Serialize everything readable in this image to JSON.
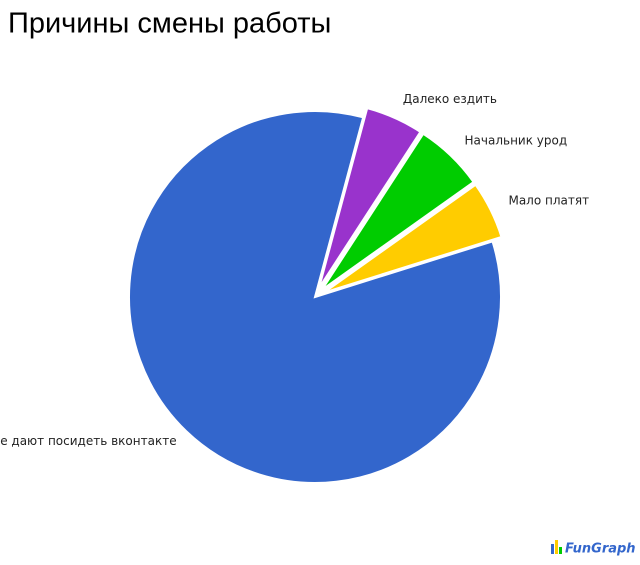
{
  "chart_data": {
    "type": "pie",
    "title": "Причины смены работы",
    "categories": [
      "Далеко ездить",
      "Начальник урод",
      "Мало платят",
      "Не дают посидеть вконтакте"
    ],
    "values": [
      5,
      6,
      5,
      84
    ],
    "colors": [
      "#9933cc",
      "#00cc00",
      "#ffcc00",
      "#3366cc"
    ],
    "exploded": [
      true,
      true,
      true,
      false
    ],
    "start_angle": 15
  },
  "logo": "FunGraph"
}
